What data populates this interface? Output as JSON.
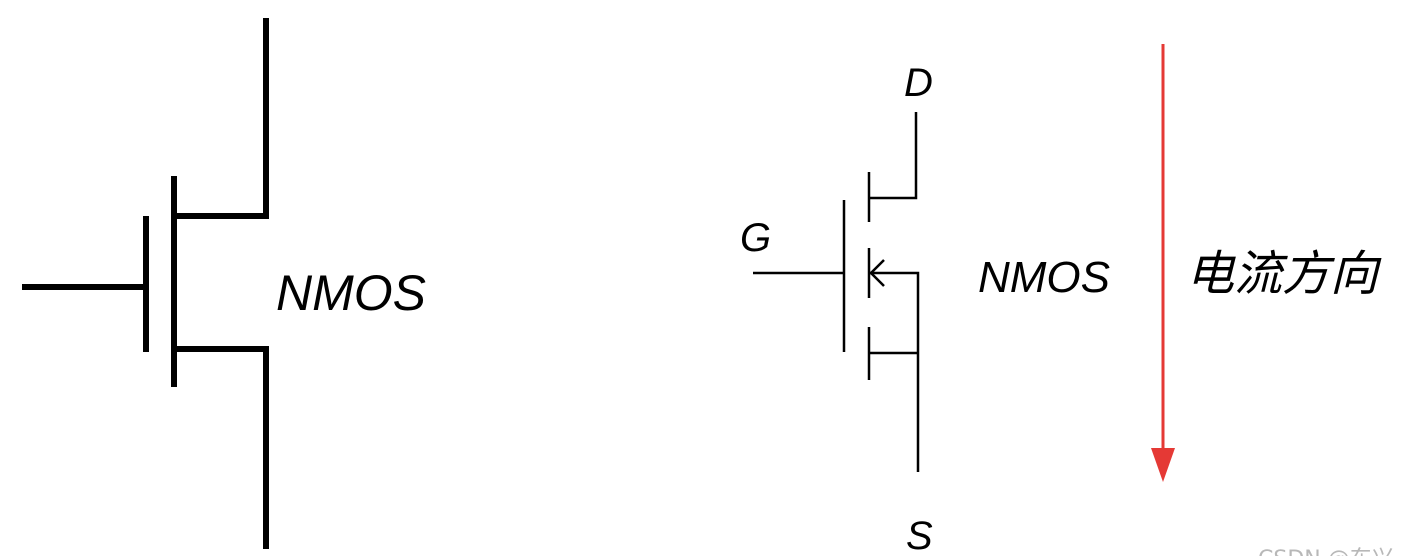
{
  "left_symbol": {
    "label": "NMOS"
  },
  "right_symbol": {
    "label": "NMOS",
    "terminal_drain": "D",
    "terminal_gate": "G",
    "terminal_source": "S"
  },
  "current_annotation": {
    "label": "电流方向",
    "arrow_color": "#e53935"
  },
  "watermark": {
    "text": "CSDN @东兴"
  },
  "colors": {
    "line": "#000000",
    "background": "#ffffff"
  }
}
